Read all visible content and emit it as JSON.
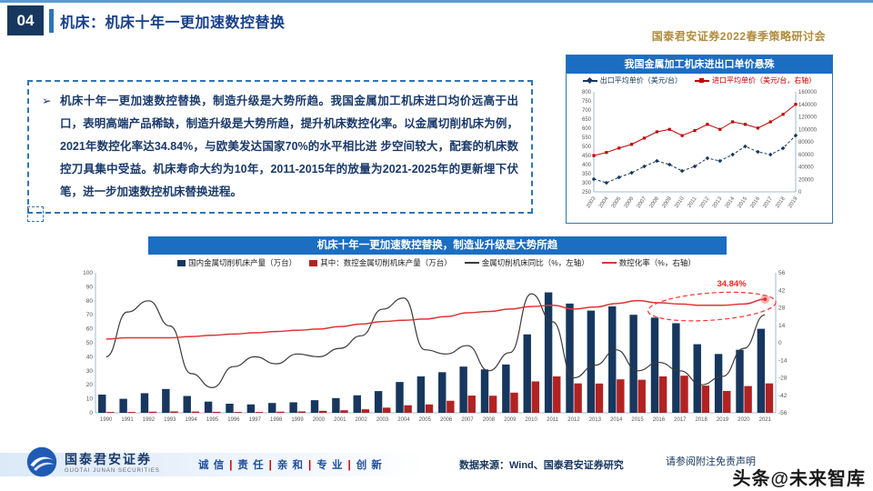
{
  "slide": {
    "page_number": "04",
    "title": "机床：机床十年一更加速数控替换",
    "event": "国泰君安证券2022春季策略研讨会"
  },
  "bullet": {
    "marker": "➢",
    "lead": "机床十年一更加速数控替换，制造升级是大势所趋。",
    "body": "我国金属加工机床进口均价远高于出口，表明高端产品稀缺，制造升级是大势所趋，提升机床数控化率。以金属切削机床为例，2021年数控化率达34.84%，与欧美发达国家70%的水平相比进 步空间较大，配套的机床数控刀具集中受益。机床寿命大约为10年，2011-2015年的放量为2021-2025年的更新埋下伏笔，进一步加速数控机床替换进程。"
  },
  "footer": {
    "brand_cn": "国泰君安证券",
    "brand_en": "GUOTAI JUNAN SECURITIES",
    "slogan_words": [
      "诚 信",
      "责 任",
      "亲 和",
      "专 业",
      "创 新"
    ],
    "source": "数据来源：Wind、国泰君安证券研究",
    "disclaimer": "请参阅附注免责声明",
    "watermark": "头条@未来智库"
  },
  "colors": {
    "navy": "#17375e",
    "header_blue": "#1b6ec2",
    "red": "#c00000",
    "gold": "#b08c3e",
    "line_red": "#e03333",
    "line_black": "#3a3a3a"
  },
  "chart_data": [
    {
      "type": "line",
      "title": "我国金属加工机床进出口单价悬殊",
      "x": [
        2003,
        2004,
        2005,
        2006,
        2007,
        2008,
        2009,
        2010,
        2011,
        2012,
        2013,
        2014,
        2015,
        2016,
        2017,
        2018,
        2019
      ],
      "series": [
        {
          "name": "出口平均单价（美元/台）",
          "axis": "left",
          "color": "#17375e",
          "style": "dashed",
          "marker": "diamond",
          "values": [
            320,
            300,
            330,
            355,
            390,
            420,
            400,
            365,
            390,
            435,
            420,
            455,
            500,
            470,
            455,
            490,
            560
          ]
        },
        {
          "name": "进口平均单价（美元/台，右轴）",
          "axis": "right",
          "color": "#c00000",
          "style": "solid",
          "marker": "square",
          "values": [
            58000,
            63000,
            70000,
            76000,
            86000,
            96000,
            100000,
            90000,
            98000,
            108000,
            100000,
            112000,
            108000,
            102000,
            112000,
            124000,
            140000
          ]
        }
      ],
      "left_axis": {
        "min": 250,
        "max": 800,
        "step": 50
      },
      "right_axis": {
        "min": 0,
        "max": 160000,
        "step": 20000
      },
      "legend_position": "top",
      "grid": false
    },
    {
      "type": "combo",
      "title": "机床十年一更加速数控替换，制造业升级是大势所趋",
      "x": [
        1990,
        1991,
        1992,
        1993,
        1994,
        1995,
        1996,
        1997,
        1998,
        1999,
        2000,
        2001,
        2002,
        2003,
        2004,
        2005,
        2006,
        2007,
        2008,
        2009,
        2010,
        2011,
        2012,
        2013,
        2014,
        2015,
        2016,
        2017,
        2018,
        2019,
        2020,
        2021
      ],
      "bars": [
        {
          "name": "国内金属切削机床产量（万台）",
          "axis": "left",
          "color": "#17375e",
          "values": [
            13,
            10,
            14,
            17,
            12,
            8,
            6.5,
            6,
            7,
            7.5,
            9,
            10.5,
            12.5,
            15.5,
            22,
            26,
            29,
            33,
            31,
            34.5,
            56,
            86,
            78,
            73,
            76,
            70,
            68,
            64,
            49,
            42,
            45,
            60
          ]
        },
        {
          "name": "其中：数控金属切削机床产量（万台）",
          "axis": "left",
          "color": "#b22222",
          "values": [
            0.6,
            0.6,
            0.8,
            1,
            0.9,
            0.7,
            0.6,
            0.6,
            0.8,
            1,
            1.4,
            1.8,
            2.5,
            3.7,
            5.4,
            6,
            8.6,
            12.3,
            12.2,
            14.4,
            22.4,
            26,
            21,
            20.9,
            23.9,
            23.6,
            26,
            26.5,
            19.4,
            15.6,
            19.1,
            21
          ]
        }
      ],
      "lines": [
        {
          "name": "金属切削机床同比（%，左轴）",
          "axis": "left",
          "color": "#3a3a3a",
          "values": [
            40,
            72,
            80,
            62,
            28,
            18,
            33,
            40,
            35,
            42,
            40,
            46,
            55,
            74,
            82,
            45,
            42,
            48,
            30,
            43,
            85,
            65,
            25,
            34,
            45,
            30,
            36,
            30,
            20,
            26,
            46,
            70
          ]
        },
        {
          "name": "数控化率（%，右轴）",
          "axis": "right",
          "color": "#e03333",
          "values": [
            3,
            4,
            4,
            4,
            5,
            6,
            7,
            8,
            9,
            10,
            11,
            13,
            15,
            17,
            18,
            19,
            21,
            24,
            25,
            27,
            29,
            30,
            27,
            28.6,
            31.4,
            33.7,
            32,
            31,
            30,
            30,
            31,
            34.84
          ]
        }
      ],
      "left_axis": {
        "min": 0,
        "max": 100,
        "step": 10
      },
      "right_axis": {
        "min": -56,
        "max": 56,
        "step": 14
      },
      "annotation": {
        "text": "34.84%",
        "value": 34.84,
        "color": "#ff2222"
      },
      "legend_position": "top",
      "grid": false
    }
  ]
}
